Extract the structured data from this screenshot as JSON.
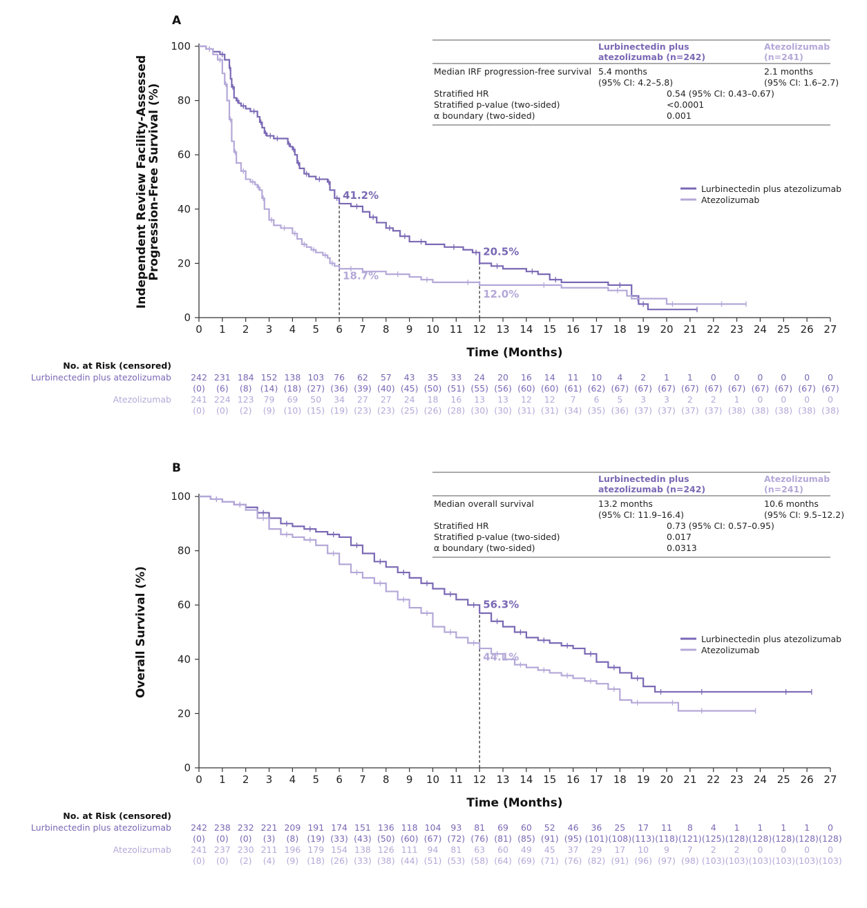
{
  "colors": {
    "lurb": "#7a68b4",
    "atezo": "#b4a8d8",
    "axis": "#333333",
    "text": "#222222"
  },
  "legend": {
    "lurb": "Lurbinectedin plus atezolizumab",
    "atezo": "Atezolizumab"
  },
  "xlabel": "Time (Months)",
  "risk_header": "No. at Risk (censored)",
  "risk_labels": {
    "lurb": "Lurbinectedin plus atezolizumab",
    "atezo": "Atezolizumab"
  },
  "chart_data": [
    {
      "type": "line",
      "panel": "A",
      "ylabel": "Independent Review Facility-Assessed\nProgression-Free Survival (%)",
      "xlabel": "Time (Months)",
      "xlim": [
        0,
        27
      ],
      "ylim": [
        0,
        100
      ],
      "xticks": [
        0,
        1,
        2,
        3,
        4,
        5,
        6,
        7,
        8,
        9,
        10,
        11,
        12,
        13,
        14,
        15,
        16,
        17,
        18,
        19,
        20,
        21,
        22,
        23,
        24,
        25,
        26,
        27
      ],
      "yticks": [
        0,
        20,
        40,
        60,
        80,
        100
      ],
      "table": {
        "head_lurb": "Lurbinectedin plus\natezolizumab (n=242)",
        "head_atezo": "Atezolizumab\n(n=241)",
        "rows": [
          {
            "label": "Median IRF progression-free survival",
            "lurb": "5.4 months\n(95% CI: 4.2–5.8)",
            "atezo": "2.1 months\n(95% CI: 1.6–2.7)"
          },
          {
            "label": "Stratified HR",
            "mid": "0.54 (95% CI: 0.43–0.67)"
          },
          {
            "label": "Stratified p-value (two-sided)",
            "mid": "<0.0001"
          },
          {
            "label": "α boundary (two-sided)",
            "mid": "0.001"
          }
        ]
      },
      "series": [
        {
          "name": "Lurbinectedin plus atezolizumab",
          "key": "lurb",
          "x": [
            0,
            0.3,
            0.6,
            0.9,
            1.1,
            1.3,
            1.35,
            1.4,
            1.5,
            1.6,
            1.7,
            1.8,
            2.0,
            2.2,
            2.5,
            2.6,
            2.7,
            2.8,
            2.9,
            3.0,
            3.1,
            3.2,
            3.5,
            3.8,
            3.9,
            4.0,
            4.1,
            4.2,
            4.3,
            4.5,
            4.7,
            5.0,
            5.3,
            5.5,
            5.6,
            5.8,
            6.0,
            6.5,
            7.0,
            7.3,
            7.6,
            8.0,
            8.3,
            8.6,
            9.0,
            9.3,
            9.7,
            10.5,
            11.3,
            11.7,
            12.0,
            12.5,
            13.0,
            14.0,
            14.5,
            15.0,
            15.5,
            17.5,
            18.5,
            18.8,
            19.2,
            21.3
          ],
          "y": [
            100,
            99,
            98,
            97,
            95,
            92,
            88,
            85,
            81,
            80,
            79,
            78,
            77,
            76,
            74,
            72,
            70,
            68,
            67,
            67,
            67,
            66,
            66,
            64,
            63,
            62,
            60,
            57,
            55,
            53,
            52,
            51,
            51,
            50,
            47,
            44,
            42,
            41,
            39,
            37,
            35,
            33,
            32,
            30,
            28,
            28,
            27,
            26,
            25,
            24,
            20,
            19,
            18,
            17,
            16,
            14,
            13,
            12,
            8,
            5,
            3,
            3
          ]
        },
        {
          "name": "Atezolizumab",
          "key": "atezo",
          "x": [
            0,
            0.3,
            0.6,
            0.8,
            1.0,
            1.1,
            1.2,
            1.3,
            1.4,
            1.5,
            1.6,
            1.8,
            2.0,
            2.2,
            2.4,
            2.5,
            2.6,
            2.7,
            2.8,
            3.0,
            3.2,
            3.5,
            3.8,
            4.0,
            4.2,
            4.4,
            4.6,
            4.8,
            5.0,
            5.3,
            5.5,
            5.6,
            5.8,
            6.0,
            7.0,
            8.0,
            9.0,
            9.5,
            10.0,
            11.0,
            12.0,
            14.0,
            15.5,
            17.5,
            18.3,
            18.5,
            19.0,
            20.0,
            20.5,
            21.3,
            23.4
          ],
          "y": [
            100,
            99,
            97,
            95,
            90,
            86,
            80,
            73,
            65,
            61,
            57,
            54,
            51,
            50,
            49,
            48,
            47,
            44,
            40,
            36,
            34,
            33,
            33,
            31,
            29,
            27,
            26,
            25,
            24,
            23,
            22,
            20,
            19,
            18,
            17,
            16,
            15,
            14,
            13,
            13,
            12,
            12,
            11,
            10,
            8,
            7,
            7,
            5,
            5,
            5,
            5
          ]
        }
      ],
      "annotations": [
        {
          "text": "41.2%",
          "key": "lurb",
          "x": 6,
          "y": 41.2
        },
        {
          "text": "18.7%",
          "key": "atezo",
          "x": 6,
          "y": 18.7
        },
        {
          "text": "20.5%",
          "key": "lurb",
          "x": 12,
          "y": 20.5
        },
        {
          "text": "12.0%",
          "key": "atezo",
          "x": 12,
          "y": 12.0
        }
      ],
      "dashed_x": [
        6,
        12
      ],
      "risk": {
        "lurb_n": [
          "242",
          "231",
          "184",
          "152",
          "138",
          "103",
          "76",
          "62",
          "57",
          "43",
          "35",
          "33",
          "24",
          "20",
          "16",
          "14",
          "11",
          "10",
          "4",
          "2",
          "1",
          "1",
          "0",
          "0",
          "0",
          "0",
          "0",
          "0"
        ],
        "lurb_c": [
          "(0)",
          "(6)",
          "(8)",
          "(14)",
          "(18)",
          "(27)",
          "(36)",
          "(39)",
          "(40)",
          "(45)",
          "(50)",
          "(51)",
          "(55)",
          "(56)",
          "(60)",
          "(60)",
          "(61)",
          "(62)",
          "(67)",
          "(67)",
          "(67)",
          "(67)",
          "(67)",
          "(67)",
          "(67)",
          "(67)",
          "(67)",
          "(67)"
        ],
        "atezo_n": [
          "241",
          "224",
          "123",
          "79",
          "69",
          "50",
          "34",
          "27",
          "27",
          "24",
          "18",
          "16",
          "13",
          "13",
          "12",
          "12",
          "7",
          "6",
          "5",
          "3",
          "3",
          "2",
          "2",
          "1",
          "0",
          "0",
          "0",
          "0"
        ],
        "atezo_c": [
          "(0)",
          "(0)",
          "(2)",
          "(9)",
          "(10)",
          "(15)",
          "(19)",
          "(23)",
          "(23)",
          "(25)",
          "(26)",
          "(28)",
          "(30)",
          "(30)",
          "(31)",
          "(31)",
          "(34)",
          "(35)",
          "(36)",
          "(37)",
          "(37)",
          "(37)",
          "(37)",
          "(38)",
          "(38)",
          "(38)",
          "(38)",
          "(38)"
        ]
      }
    },
    {
      "type": "line",
      "panel": "B",
      "ylabel": "Overall Survival (%)",
      "xlabel": "Time (Months)",
      "xlim": [
        0,
        27
      ],
      "ylim": [
        0,
        100
      ],
      "xticks": [
        0,
        1,
        2,
        3,
        4,
        5,
        6,
        7,
        8,
        9,
        10,
        11,
        12,
        13,
        14,
        15,
        16,
        17,
        18,
        19,
        20,
        21,
        22,
        23,
        24,
        25,
        26,
        27
      ],
      "yticks": [
        0,
        20,
        40,
        60,
        80,
        100
      ],
      "table": {
        "head_lurb": "Lurbinectedin plus\natezolizumab (n=242)",
        "head_atezo": "Atezolizumab\n(n=241)",
        "rows": [
          {
            "label": "Median overall survival",
            "lurb": "13.2 months\n(95% CI: 11.9–16.4)",
            "atezo": "10.6 months\n(95% CI: 9.5–12.2)"
          },
          {
            "label": "Stratified HR",
            "mid": "0.73 (95% CI: 0.57–0.95)"
          },
          {
            "label": "Stratified p-value (two-sided)",
            "mid": "0.017"
          },
          {
            "label": "α boundary (two-sided)",
            "mid": "0.0313"
          }
        ]
      },
      "series": [
        {
          "name": "Lurbinectedin plus atezolizumab",
          "key": "lurb",
          "x": [
            0,
            0.5,
            1.0,
            1.5,
            2.0,
            2.5,
            3.0,
            3.5,
            4.0,
            4.5,
            5.0,
            5.5,
            6.0,
            6.5,
            7.0,
            7.5,
            8.0,
            8.5,
            9.0,
            9.5,
            10.0,
            10.5,
            11.0,
            11.5,
            12.0,
            12.5,
            13.0,
            13.5,
            14.0,
            14.5,
            15.0,
            15.5,
            16.0,
            16.5,
            17.0,
            17.5,
            18.0,
            18.5,
            19.0,
            19.5,
            20.0,
            21.0,
            22.0,
            24.0,
            26.2
          ],
          "y": [
            100,
            99,
            98,
            97,
            96,
            94,
            92,
            90,
            89,
            88,
            87,
            86,
            85,
            82,
            79,
            76,
            74,
            72,
            70,
            68,
            66,
            64,
            62,
            60,
            57,
            54,
            52,
            50,
            48,
            47,
            46,
            45,
            44,
            42,
            39,
            37,
            35,
            33,
            30,
            28,
            28,
            28,
            28,
            28,
            28
          ]
        },
        {
          "name": "Atezolizumab",
          "key": "atezo",
          "x": [
            0,
            0.5,
            1.0,
            1.5,
            2.0,
            2.5,
            3.0,
            3.5,
            4.0,
            4.5,
            5.0,
            5.5,
            6.0,
            6.5,
            7.0,
            7.5,
            8.0,
            8.5,
            9.0,
            9.5,
            10.0,
            10.5,
            11.0,
            11.5,
            12.0,
            12.5,
            13.0,
            13.5,
            14.0,
            14.5,
            15.0,
            15.5,
            16.0,
            16.5,
            17.0,
            17.5,
            18.0,
            18.5,
            19.0,
            20.0,
            20.5,
            21.0,
            22.0,
            23.8
          ],
          "y": [
            100,
            99,
            98,
            97,
            95,
            92,
            88,
            86,
            85,
            84,
            82,
            79,
            75,
            72,
            70,
            68,
            65,
            62,
            59,
            57,
            52,
            50,
            48,
            46,
            44,
            42,
            40,
            38,
            37,
            36,
            35,
            34,
            33,
            32,
            31,
            29,
            25,
            24,
            24,
            24,
            21,
            21,
            21,
            21
          ]
        }
      ],
      "annotations": [
        {
          "text": "56.3%",
          "key": "lurb",
          "x": 12,
          "y": 56.3
        },
        {
          "text": "44.1%",
          "key": "atezo",
          "x": 12,
          "y": 44.1
        }
      ],
      "dashed_x": [
        12
      ],
      "risk": {
        "lurb_n": [
          "242",
          "238",
          "232",
          "221",
          "209",
          "191",
          "174",
          "151",
          "136",
          "118",
          "104",
          "93",
          "81",
          "69",
          "60",
          "52",
          "46",
          "36",
          "25",
          "17",
          "11",
          "8",
          "4",
          "1",
          "1",
          "1",
          "1",
          "0"
        ],
        "lurb_c": [
          "(0)",
          "(0)",
          "(0)",
          "(3)",
          "(8)",
          "(19)",
          "(33)",
          "(43)",
          "(50)",
          "(60)",
          "(67)",
          "(72)",
          "(76)",
          "(81)",
          "(85)",
          "(91)",
          "(95)",
          "(101)",
          "(108)",
          "(113)",
          "(118)",
          "(121)",
          "(125)",
          "(128)",
          "(128)",
          "(128)",
          "(128)",
          "(128)"
        ],
        "atezo_n": [
          "241",
          "237",
          "230",
          "211",
          "196",
          "179",
          "154",
          "138",
          "126",
          "111",
          "94",
          "81",
          "63",
          "60",
          "49",
          "45",
          "37",
          "29",
          "17",
          "10",
          "9",
          "7",
          "2",
          "2",
          "0",
          "0",
          "0",
          "0"
        ],
        "atezo_c": [
          "(0)",
          "(0)",
          "(2)",
          "(4)",
          "(9)",
          "(18)",
          "(26)",
          "(33)",
          "(38)",
          "(44)",
          "(51)",
          "(53)",
          "(58)",
          "(64)",
          "(69)",
          "(71)",
          "(76)",
          "(82)",
          "(91)",
          "(96)",
          "(97)",
          "(98)",
          "(103)",
          "(103)",
          "(103)",
          "(103)",
          "(103)",
          "(103)"
        ]
      }
    }
  ]
}
